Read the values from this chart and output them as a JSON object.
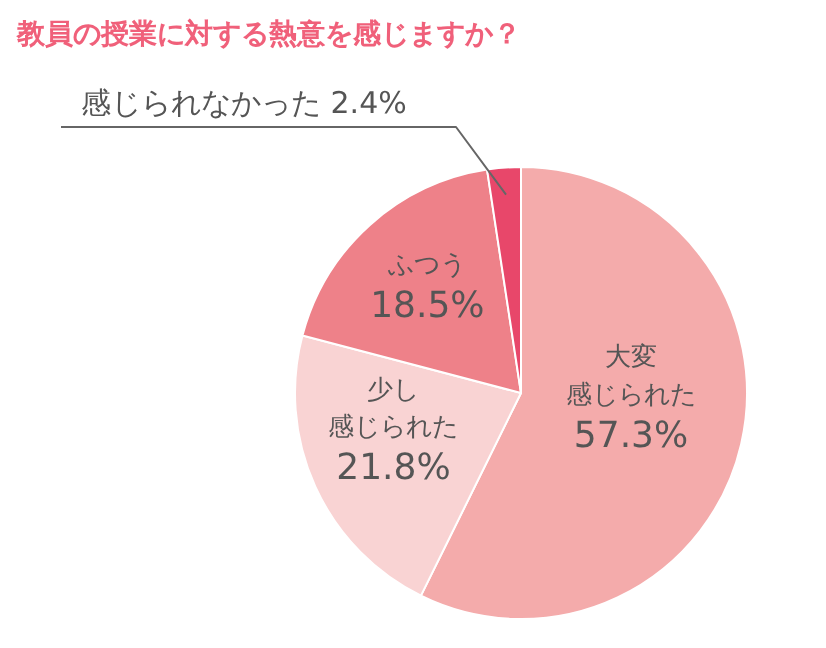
{
  "chart_data": {
    "type": "pie",
    "title": "教員の授業に対する熱意を感じますか？",
    "categories": [
      "大変感じられた",
      "少し感じられた",
      "ふつう",
      "感じられなかった"
    ],
    "values": [
      57.3,
      21.8,
      18.5,
      2.4
    ],
    "value_labels": [
      "57.3%",
      "21.8%",
      "18.5%",
      "2.4%"
    ],
    "colors": [
      "#f4abab",
      "#f9d3d3",
      "#ee8189",
      "#e8476a"
    ]
  }
}
